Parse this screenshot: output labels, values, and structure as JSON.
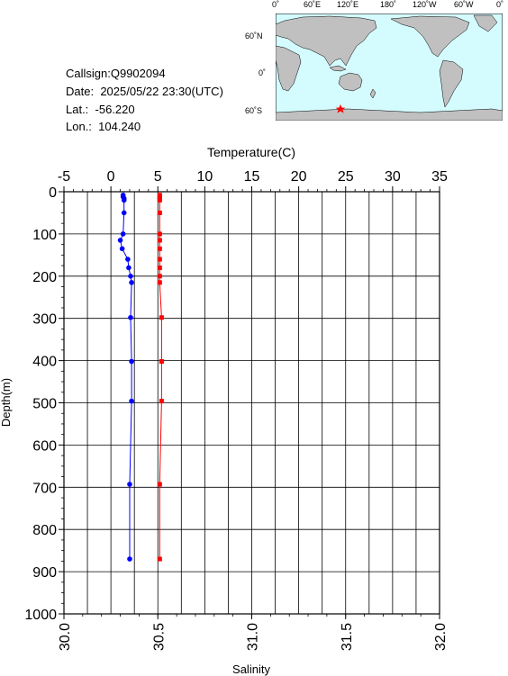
{
  "station": {
    "callsign_label": "Callsign:",
    "callsign": "Q9902094",
    "date_label": "Date:",
    "date": "2025/05/22 23:30(UTC)",
    "lat_label": "Lat.:",
    "lat": "-56.220",
    "lon_label": "Lon.:",
    "lon": "104.240"
  },
  "map": {
    "top_labels": [
      "0˚",
      "60˚E",
      "120˚E",
      "180˚",
      "120˚W",
      "60˚W",
      "0˚"
    ],
    "left_labels": [
      "60˚N",
      "0˚",
      "60˚S"
    ],
    "ocean_color": "#d4fcff",
    "land_color": "#c0c0c0",
    "marker_icon": "red-star-icon",
    "marker_color": "#ff0000"
  },
  "chart_data": {
    "type": "line",
    "ylabel": "Depth(m)",
    "ylim": [
      1000,
      0
    ],
    "yticks": [
      "0",
      "100",
      "200",
      "300",
      "400",
      "500",
      "600",
      "700",
      "800",
      "900",
      "1000"
    ],
    "top_axis": {
      "label": "Temperature(C)",
      "range": [
        -5,
        35
      ],
      "ticks": [
        "-5",
        "0",
        "5",
        "10",
        "15",
        "20",
        "25",
        "30",
        "35"
      ]
    },
    "bottom_axis": {
      "label": "Salinity",
      "range": [
        30.0,
        32.0
      ],
      "ticks": [
        "30.0",
        "30.5",
        "31.0",
        "31.5",
        "32.0"
      ]
    },
    "grid": true,
    "series": [
      {
        "axis": "temperature",
        "color": "#0000ff",
        "depth": [
          8,
          12,
          16,
          20,
          50,
          100,
          115,
          135,
          160,
          180,
          200,
          215,
          298,
          402,
          496,
          693,
          870
        ],
        "values": [
          1.3,
          1.3,
          1.4,
          1.4,
          1.4,
          1.3,
          1.0,
          1.2,
          1.8,
          1.9,
          2.1,
          2.2,
          2.1,
          2.2,
          2.2,
          2.0,
          2.0
        ]
      },
      {
        "axis": "salinity",
        "color": "#ff0000",
        "depth": [
          8,
          12,
          16,
          20,
          50,
          100,
          115,
          135,
          160,
          180,
          200,
          215,
          298,
          402,
          496,
          693,
          870
        ],
        "values": [
          30.51,
          30.51,
          30.51,
          30.51,
          30.51,
          30.51,
          30.51,
          30.51,
          30.51,
          30.51,
          30.51,
          30.51,
          30.52,
          30.52,
          30.52,
          30.51,
          30.51
        ]
      }
    ]
  }
}
